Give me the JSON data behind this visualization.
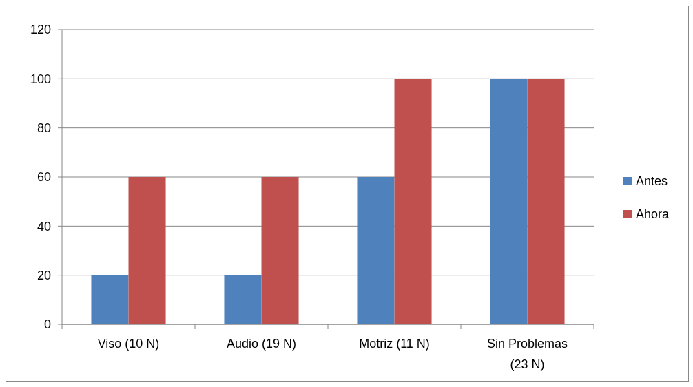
{
  "chart_data": {
    "type": "bar",
    "categories": [
      "Viso (10 N)",
      "Audio (19 N)",
      "Motriz (11 N)",
      "Sin Problemas (23 N)"
    ],
    "series": [
      {
        "name": "Antes",
        "color": "#4f81bd",
        "values": [
          20,
          20,
          60,
          100
        ]
      },
      {
        "name": "Ahora",
        "color": "#c0504d",
        "values": [
          60,
          60,
          100,
          100
        ]
      }
    ],
    "ylim": [
      0,
      120
    ],
    "yticks": [
      0,
      20,
      40,
      60,
      80,
      100,
      120
    ],
    "grid": "y",
    "legend": "right"
  }
}
